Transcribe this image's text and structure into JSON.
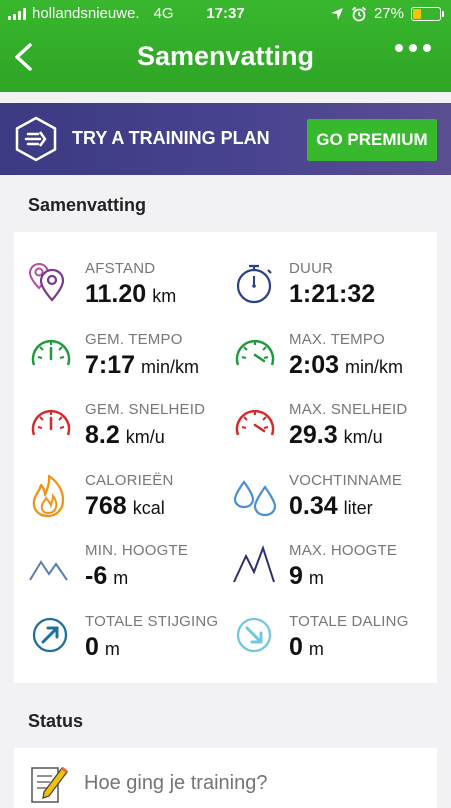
{
  "status_bar": {
    "carrier": "hollandsnieuwe.",
    "network": "4G",
    "time": "17:37",
    "battery": "27%"
  },
  "nav": {
    "title": "Samenvatting"
  },
  "banner": {
    "text": "TRY A TRAINING PLAN",
    "button": "GO PREMIUM"
  },
  "summary": {
    "heading": "Samenvatting",
    "stats": [
      {
        "label": "AFSTAND",
        "value": "11.20",
        "unit": "km",
        "icon": "location-pins-icon"
      },
      {
        "label": "DUUR",
        "value": "1:21:32",
        "unit": "",
        "icon": "stopwatch-icon"
      },
      {
        "label": "GEM. TEMPO",
        "value": "7:17",
        "unit": "min/km",
        "icon": "speedometer-green-icon"
      },
      {
        "label": "MAX. TEMPO",
        "value": "2:03",
        "unit": "min/km",
        "icon": "speedometer-green-max-icon"
      },
      {
        "label": "GEM. SNELHEID",
        "value": "8.2",
        "unit": "km/u",
        "icon": "speedometer-red-icon"
      },
      {
        "label": "MAX. SNELHEID",
        "value": "29.3",
        "unit": "km/u",
        "icon": "speedometer-red-max-icon"
      },
      {
        "label": "CALORIEËN",
        "value": "768",
        "unit": "kcal",
        "icon": "flame-icon"
      },
      {
        "label": "VOCHTINNAME",
        "value": "0.34",
        "unit": "liter",
        "icon": "water-drops-icon"
      },
      {
        "label": "MIN. HOOGTE",
        "value": "-6",
        "unit": "m",
        "icon": "mountain-low-icon"
      },
      {
        "label": "MAX. HOOGTE",
        "value": "9",
        "unit": "m",
        "icon": "mountain-high-icon"
      },
      {
        "label": "TOTALE STIJGING",
        "value": "0",
        "unit": "m",
        "icon": "arrow-up-circle-icon"
      },
      {
        "label": "TOTALE DALING",
        "value": "0",
        "unit": "m",
        "icon": "arrow-down-circle-icon"
      }
    ]
  },
  "status": {
    "heading": "Status",
    "placeholder": "Hoe ging je training?"
  },
  "colors": {
    "header_green": "#35b02b",
    "premium_green": "#37b82d",
    "banner_purple": "#3b3a82"
  }
}
